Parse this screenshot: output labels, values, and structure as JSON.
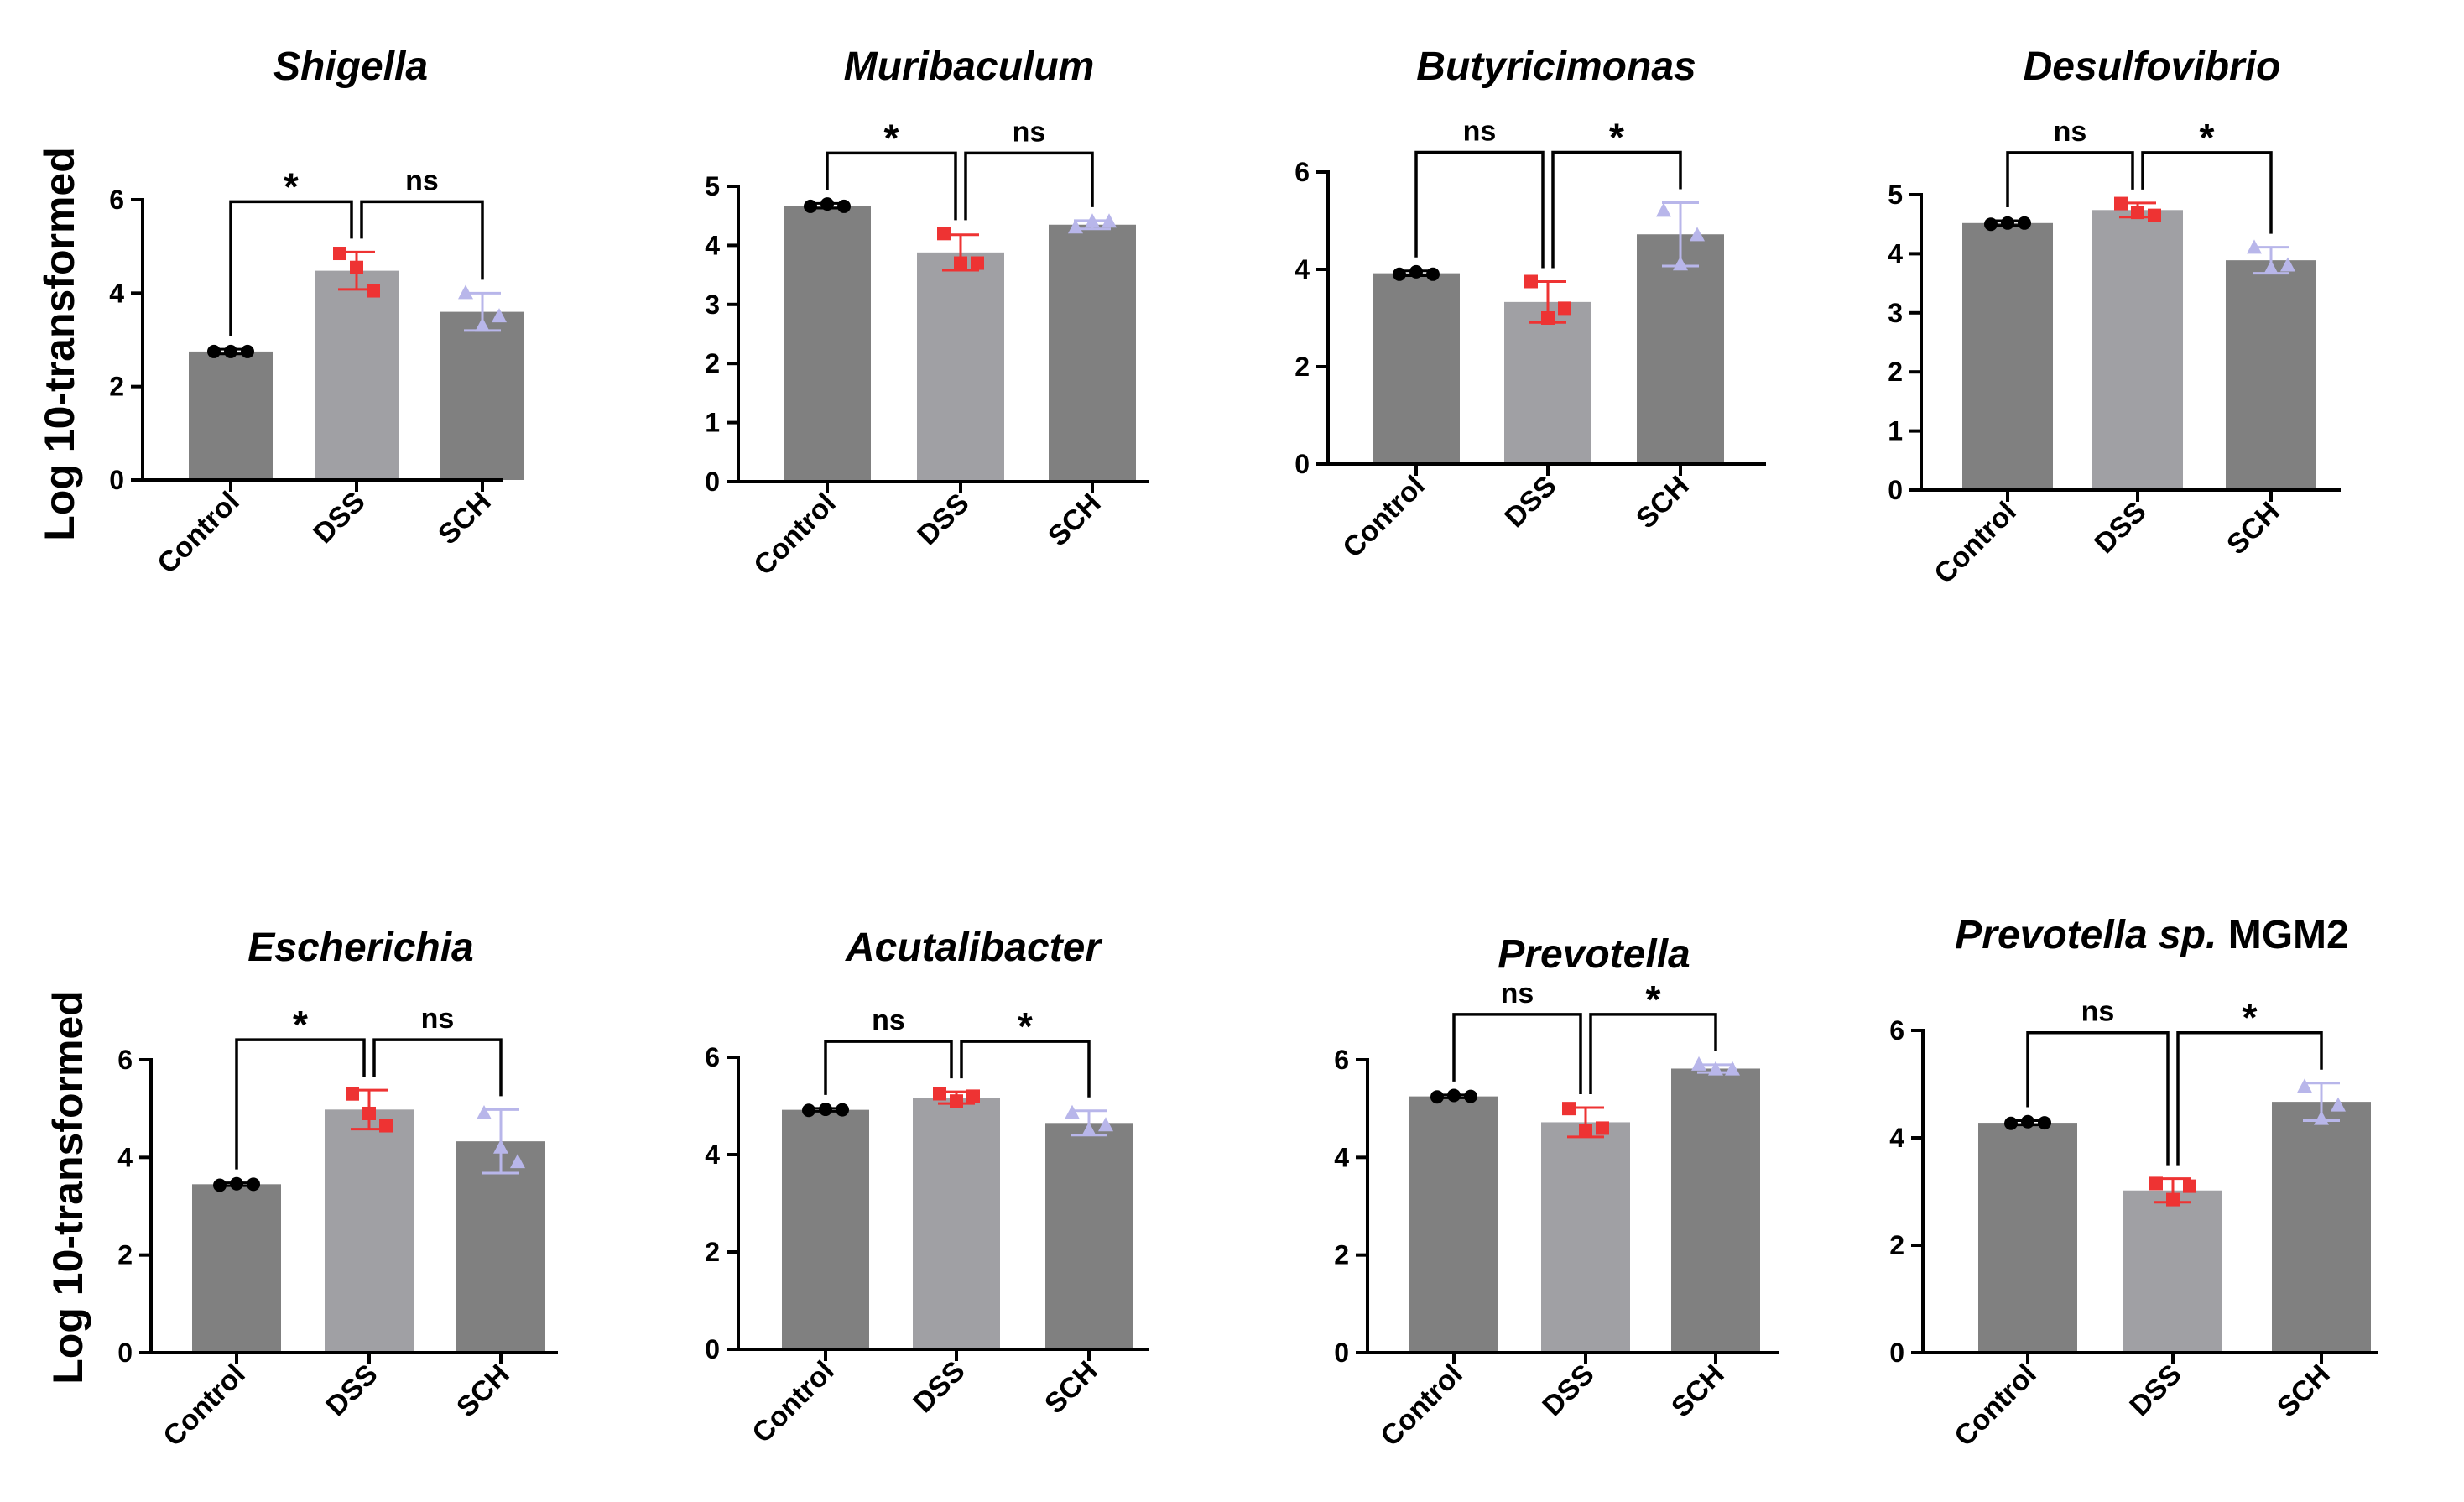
{
  "y_axis_label": "Log 10-transformed",
  "colors": {
    "bar_dark": "#808080",
    "bar_light": "#a0a0a4",
    "control_marker": "#000000",
    "dss_marker": "#ee3333",
    "sch_marker": "#b8b6ea"
  },
  "chart_data": [
    {
      "type": "bar",
      "title": "Shigella",
      "title_italic": "Shigella",
      "title_plain": "",
      "categories": [
        "Control",
        "DSS",
        "SCH"
      ],
      "values": [
        2.75,
        4.48,
        3.6
      ],
      "errors": [
        0.05,
        0.4,
        0.4
      ],
      "points": [
        [
          2.75,
          2.75,
          2.75
        ],
        [
          4.85,
          4.55,
          4.05
        ],
        [
          4.0,
          3.3,
          3.5
        ]
      ],
      "ylim": [
        0,
        6
      ],
      "yticks": [
        0,
        2,
        4,
        6
      ],
      "comparisons": [
        {
          "label": "*",
          "from": 0,
          "to": 1
        },
        {
          "label": "ns",
          "from": 1,
          "to": 2
        }
      ]
    },
    {
      "type": "bar",
      "title": "Muribaculum",
      "title_italic": "Muribaculum",
      "title_plain": "",
      "categories": [
        "Control",
        "DSS",
        "SCH"
      ],
      "values": [
        4.67,
        3.88,
        4.35
      ],
      "errors": [
        0.04,
        0.3,
        0.07
      ],
      "points": [
        [
          4.66,
          4.7,
          4.66
        ],
        [
          4.2,
          3.7,
          3.7
        ],
        [
          4.3,
          4.4,
          4.4
        ]
      ],
      "ylim": [
        0,
        5
      ],
      "yticks": [
        0,
        1,
        2,
        3,
        4,
        5
      ],
      "comparisons": [
        {
          "label": "*",
          "from": 0,
          "to": 1
        },
        {
          "label": "ns",
          "from": 1,
          "to": 2
        }
      ]
    },
    {
      "type": "bar",
      "title": "Butyricimonas",
      "title_italic": "Butyricimonas",
      "title_plain": "",
      "categories": [
        "Control",
        "DSS",
        "SCH"
      ],
      "values": [
        3.92,
        3.33,
        4.72
      ],
      "errors": [
        0.05,
        0.42,
        0.65
      ],
      "points": [
        [
          3.9,
          3.95,
          3.9
        ],
        [
          3.75,
          3.0,
          3.2
        ],
        [
          5.2,
          4.1,
          4.7
        ]
      ],
      "ylim": [
        0,
        6
      ],
      "yticks": [
        0,
        2,
        4,
        6
      ],
      "comparisons": [
        {
          "label": "ns",
          "from": 0,
          "to": 1
        },
        {
          "label": "*",
          "from": 1,
          "to": 2
        }
      ]
    },
    {
      "type": "bar",
      "title": "Desulfovibrio",
      "title_italic": "Desulfovibrio",
      "title_plain": "",
      "categories": [
        "Control",
        "DSS",
        "SCH"
      ],
      "values": [
        4.52,
        4.74,
        3.89
      ],
      "errors": [
        0.04,
        0.12,
        0.22
      ],
      "points": [
        [
          4.5,
          4.52,
          4.52
        ],
        [
          4.85,
          4.7,
          4.65
        ],
        [
          4.1,
          3.75,
          3.8
        ]
      ],
      "ylim": [
        0,
        5
      ],
      "yticks": [
        0,
        1,
        2,
        3,
        4,
        5
      ],
      "comparisons": [
        {
          "label": "ns",
          "from": 0,
          "to": 1
        },
        {
          "label": "*",
          "from": 1,
          "to": 2
        }
      ]
    },
    {
      "type": "bar",
      "title": "Escherichia",
      "title_italic": "Escherichia",
      "title_plain": "",
      "categories": [
        "Control",
        "DSS",
        "SCH"
      ],
      "values": [
        3.45,
        4.98,
        4.33
      ],
      "errors": [
        0.03,
        0.4,
        0.65
      ],
      "points": [
        [
          3.43,
          3.46,
          3.45
        ],
        [
          5.3,
          4.9,
          4.65
        ],
        [
          4.9,
          4.2,
          3.9
        ]
      ],
      "ylim": [
        0,
        6
      ],
      "yticks": [
        0,
        2,
        4,
        6
      ],
      "comparisons": [
        {
          "label": "*",
          "from": 0,
          "to": 1
        },
        {
          "label": "ns",
          "from": 1,
          "to": 2
        }
      ]
    },
    {
      "type": "bar",
      "title": "Acutalibacter",
      "title_italic": "Acutalibacter",
      "title_plain": "",
      "categories": [
        "Control",
        "DSS",
        "SCH"
      ],
      "values": [
        4.92,
        5.17,
        4.65
      ],
      "errors": [
        0.03,
        0.12,
        0.25
      ],
      "points": [
        [
          4.91,
          4.93,
          4.92
        ],
        [
          5.25,
          5.1,
          5.2
        ],
        [
          4.85,
          4.5,
          4.6
        ]
      ],
      "ylim": [
        0,
        6
      ],
      "yticks": [
        0,
        2,
        4,
        6
      ],
      "comparisons": [
        {
          "label": "ns",
          "from": 0,
          "to": 1
        },
        {
          "label": "*",
          "from": 1,
          "to": 2
        }
      ]
    },
    {
      "type": "bar",
      "title": "Prevotella",
      "title_italic": "Prevotella",
      "title_plain": "",
      "categories": [
        "Control",
        "DSS",
        "SCH"
      ],
      "values": [
        5.25,
        4.72,
        5.82
      ],
      "errors": [
        0.03,
        0.3,
        0.08
      ],
      "points": [
        [
          5.24,
          5.27,
          5.25
        ],
        [
          5.0,
          4.55,
          4.6
        ],
        [
          5.9,
          5.8,
          5.8
        ]
      ],
      "ylim": [
        0,
        6
      ],
      "yticks": [
        0,
        2,
        4,
        6
      ],
      "comparisons": [
        {
          "label": "ns",
          "from": 0,
          "to": 1
        },
        {
          "label": "*",
          "from": 1,
          "to": 2
        }
      ]
    },
    {
      "type": "bar",
      "title": "Prevotella sp. MGM2",
      "title_italic": "Prevotella sp.",
      "title_plain": " MGM2",
      "categories": [
        "Control",
        "DSS",
        "SCH"
      ],
      "values": [
        4.28,
        3.02,
        4.67
      ],
      "errors": [
        0.04,
        0.22,
        0.35
      ],
      "points": [
        [
          4.27,
          4.3,
          4.28
        ],
        [
          3.15,
          2.85,
          3.1
        ],
        [
          4.95,
          4.35,
          4.6
        ]
      ],
      "ylim": [
        0,
        6
      ],
      "yticks": [
        0,
        2,
        4,
        6
      ],
      "comparisons": [
        {
          "label": "ns",
          "from": 0,
          "to": 1
        },
        {
          "label": "*",
          "from": 1,
          "to": 2
        }
      ]
    }
  ]
}
